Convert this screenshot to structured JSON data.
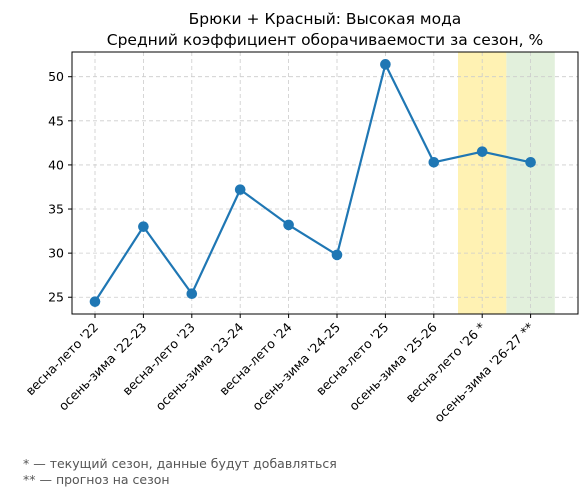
{
  "chart_data": {
    "type": "line",
    "title": "Брюки + Красный: Высокая мода",
    "subtitle": "Средний коэффициент оборачиваемости за сезон, %",
    "xlabel": "",
    "ylabel": "",
    "categories": [
      "весна-лето '22",
      "осень-зима '22-23",
      "весна-лето '23",
      "осень-зима '23-24",
      "весна-лето '24",
      "осень-зима '24-25",
      "весна-лето '25",
      "осень-зима '25-26",
      "весна-лето '26 *",
      "осень-зима '26-27 **"
    ],
    "series": [
      {
        "values": [
          24.5,
          33.0,
          25.4,
          37.2,
          33.2,
          29.8,
          51.4,
          40.3,
          41.5,
          40.3
        ],
        "color": "#1f77b4"
      }
    ],
    "ylim": [
      23.1,
      52.8
    ],
    "yticks": [
      25,
      30,
      35,
      40,
      45,
      50
    ],
    "grid": true,
    "highlights": [
      {
        "category_index": 8,
        "color": "#fff2b3"
      },
      {
        "category_index": 9,
        "color": "#e2f0dc"
      }
    ]
  },
  "footnotes": [
    "* — текущий сезон, данные будут добавляться",
    "** — прогноз на сезон"
  ]
}
